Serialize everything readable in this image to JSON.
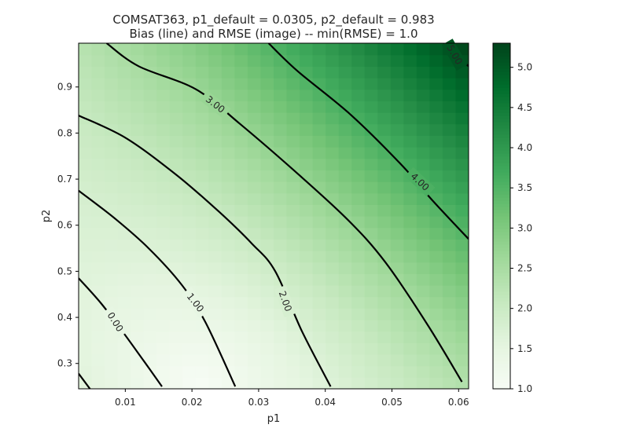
{
  "chart_data": {
    "type": "heatmap",
    "title_line1": "COMSAT363, p1_default = 0.0305, p2_default = 0.983",
    "title_line2": "Bias (line) and RMSE (image) -- min(RMSE) = 1.0",
    "xlabel": "p1",
    "ylabel": "p2",
    "xlim": [
      0.003,
      0.0615
    ],
    "ylim": [
      0.245,
      0.995
    ],
    "x_ticks": [
      "0.01",
      "0.02",
      "0.03",
      "0.04",
      "0.05",
      "0.06"
    ],
    "y_ticks": [
      "0.3",
      "0.4",
      "0.5",
      "0.6",
      "0.7",
      "0.8",
      "0.9"
    ],
    "colorbar": {
      "min": 1.0,
      "max": 5.3,
      "ticks": [
        "1.0",
        "1.5",
        "2.0",
        "2.5",
        "3.0",
        "3.5",
        "4.0",
        "4.5",
        "5.0"
      ],
      "colormap": "Greens"
    },
    "grid": false,
    "rmse_grid": {
      "nx": 30,
      "ny": 30,
      "min_value": 1.0,
      "min_location": [
        0.021,
        0.255
      ],
      "approx_corner_values": {
        "top_left": 2.7,
        "top_right": 5.3,
        "bottom_left": 2.3,
        "bottom_right": 3.2
      }
    },
    "contours": [
      {
        "level": "0.00",
        "points": [
          [
            0.003,
            0.485
          ],
          [
            0.0064,
            0.43
          ],
          [
            0.0098,
            0.365
          ],
          [
            0.0128,
            0.305
          ],
          [
            0.0155,
            0.25
          ]
        ]
      },
      {
        "level": "0.00",
        "points": [
          [
            0.003,
            0.278
          ],
          [
            0.0047,
            0.245
          ]
        ]
      },
      {
        "level": "1.00",
        "points": [
          [
            0.003,
            0.675
          ],
          [
            0.0084,
            0.615
          ],
          [
            0.0135,
            0.55
          ],
          [
            0.0185,
            0.47
          ],
          [
            0.022,
            0.39
          ],
          [
            0.0265,
            0.25
          ]
        ]
      },
      {
        "level": "2.00",
        "points": [
          [
            0.003,
            0.838
          ],
          [
            0.01,
            0.79
          ],
          [
            0.0176,
            0.71
          ],
          [
            0.024,
            0.63
          ],
          [
            0.029,
            0.56
          ],
          [
            0.0325,
            0.5
          ],
          [
            0.0365,
            0.37
          ],
          [
            0.0408,
            0.25
          ]
        ]
      },
      {
        "level": "3.00",
        "points": [
          [
            0.0072,
            0.995
          ],
          [
            0.012,
            0.945
          ],
          [
            0.0206,
            0.895
          ],
          [
            0.0272,
            0.82
          ],
          [
            0.036,
            0.71
          ],
          [
            0.0435,
            0.61
          ],
          [
            0.049,
            0.52
          ],
          [
            0.0553,
            0.385
          ],
          [
            0.0605,
            0.26
          ]
        ]
      },
      {
        "level": "4.00",
        "points": [
          [
            0.0315,
            0.995
          ],
          [
            0.0358,
            0.935
          ],
          [
            0.0438,
            0.84
          ],
          [
            0.0515,
            0.73
          ],
          [
            0.056,
            0.655
          ],
          [
            0.0615,
            0.57
          ]
        ]
      },
      {
        "level": "5.00",
        "points": [
          [
            0.0578,
            0.995
          ],
          [
            0.0615,
            0.945
          ]
        ]
      }
    ],
    "contour_labels": [
      {
        "text": "0.00",
        "x": 0.0085,
        "y": 0.39,
        "angle": 58
      },
      {
        "text": "1.00",
        "x": 0.0205,
        "y": 0.432,
        "angle": 52
      },
      {
        "text": "2.00",
        "x": 0.034,
        "y": 0.435,
        "angle": 70
      },
      {
        "text": "3.00",
        "x": 0.0235,
        "y": 0.862,
        "angle": 38
      },
      {
        "text": "4.00",
        "x": 0.0542,
        "y": 0.694,
        "angle": 43
      },
      {
        "text": "5.00",
        "x": 0.0594,
        "y": 0.97,
        "angle": 60
      }
    ]
  }
}
